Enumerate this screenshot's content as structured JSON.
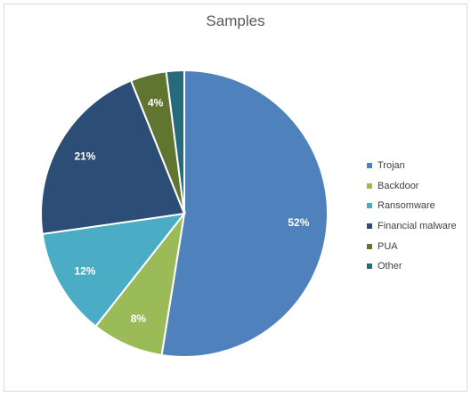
{
  "chart_data": {
    "type": "pie",
    "title": "Samples",
    "legend_position": "right",
    "slices": [
      {
        "label": "Trojan",
        "value": 52,
        "value_label": "52%",
        "color": "#4f81bd"
      },
      {
        "label": "Backdoor",
        "value": 8,
        "value_label": "8%",
        "color": "#9bbb59"
      },
      {
        "label": "Ransomware",
        "value": 12,
        "value_label": "12%",
        "color": "#4bacc6"
      },
      {
        "label": "Financial malware",
        "value": 21,
        "value_label": "21%",
        "color": "#2c4d75"
      },
      {
        "label": "PUA",
        "value": 4,
        "value_label": "4%",
        "color": "#5f7530"
      },
      {
        "label": "Other",
        "value": 2,
        "value_label": "",
        "color": "#276a7c"
      }
    ]
  }
}
